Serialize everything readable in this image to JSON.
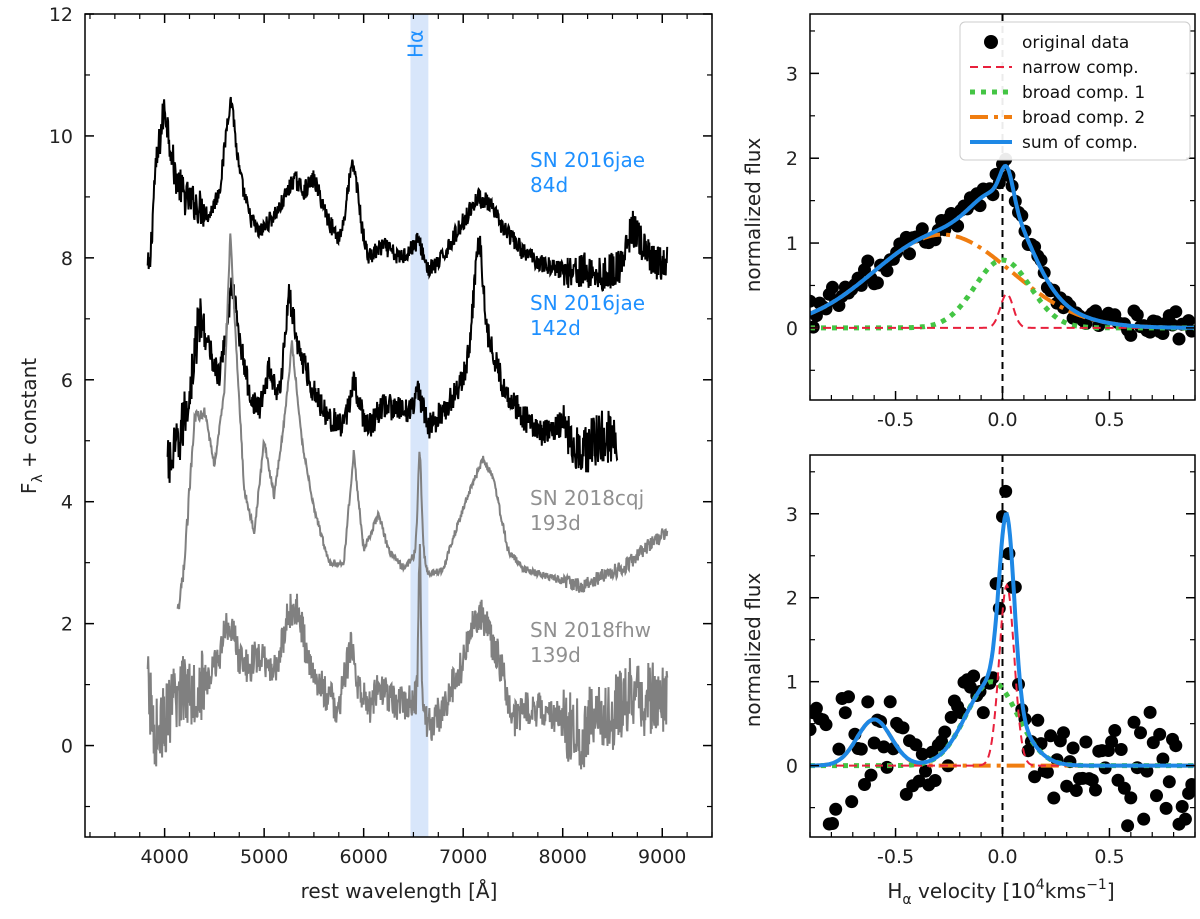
{
  "chart_data": [
    {
      "type": "line",
      "title": "",
      "xlabel": "rest wavelength [Å]",
      "ylabel": "F_λ + constant",
      "ylabel_main": "F",
      "ylabel_sub": "λ",
      "ylabel_rest": " + constant",
      "xlim": [
        3200,
        9500
      ],
      "ylim": [
        -1.5,
        12
      ],
      "xticks": [
        4000,
        5000,
        6000,
        7000,
        8000,
        9000
      ],
      "xtick_labels": [
        "4000",
        "5000",
        "6000",
        "7000",
        "8000",
        "9000"
      ],
      "yticks": [
        0,
        2,
        4,
        6,
        8,
        10,
        12
      ],
      "ytick_labels": [
        "0",
        "2",
        "4",
        "6",
        "8",
        "10",
        "12"
      ],
      "highlight": {
        "label": "Hα",
        "range": [
          6470,
          6650
        ],
        "color": "#d8e6fa"
      },
      "series": [
        {
          "name": "SN 2016jae 84d",
          "label_line1": "SN 2016jae",
          "label_line2": "84d",
          "color": "#000000",
          "label_color": "#1e90ff",
          "x_range": [
            3830,
            9050
          ],
          "offset": 7.0,
          "lines": [
            [
              3850,
              0.8
            ],
            [
              3900,
              2.3
            ],
            [
              4000,
              3.5
            ],
            [
              4100,
              2.4
            ],
            [
              4200,
              2.0
            ],
            [
              4300,
              1.9
            ],
            [
              4450,
              1.7
            ],
            [
              4550,
              2.1
            ],
            [
              4680,
              3.1
            ],
            [
              4750,
              2.4
            ],
            [
              4850,
              1.7
            ],
            [
              4950,
              1.4
            ],
            [
              5050,
              1.6
            ],
            [
              5150,
              1.8
            ],
            [
              5300,
              2.3
            ],
            [
              5400,
              2.1
            ],
            [
              5500,
              2.3
            ],
            [
              5650,
              1.6
            ],
            [
              5750,
              1.3
            ],
            [
              5900,
              1.5
            ],
            [
              5950,
              1.4
            ],
            [
              6050,
              1.0
            ],
            [
              6200,
              1.2
            ],
            [
              6350,
              1.0
            ],
            [
              6450,
              1.1
            ],
            [
              6550,
              1.3
            ],
            [
              6650,
              0.8
            ],
            [
              6750,
              0.9
            ],
            [
              7000,
              1.6
            ],
            [
              7150,
              2.0
            ],
            [
              7250,
              1.9
            ],
            [
              7400,
              1.5
            ],
            [
              7600,
              1.1
            ],
            [
              7800,
              0.9
            ],
            [
              8000,
              0.8
            ],
            [
              8200,
              0.8
            ],
            [
              8400,
              0.7
            ],
            [
              8600,
              0.9
            ],
            [
              8700,
              1.5
            ],
            [
              8800,
              1.2
            ],
            [
              8900,
              0.9
            ],
            [
              9050,
              0.9
            ]
          ],
          "peaks": [
            [
              5890,
              1.0,
              55
            ],
            [
              4650,
              0.6,
              40
            ]
          ],
          "noise": 0.15
        },
        {
          "name": "SN 2016jae 142d",
          "label_line1": "SN 2016jae",
          "label_line2": "142d",
          "color": "#000000",
          "label_color": "#1e90ff",
          "x_range": [
            4030,
            8550
          ],
          "offset": 4.2,
          "lines": [
            [
              4050,
              0.4
            ],
            [
              4150,
              0.8
            ],
            [
              4250,
              1.6
            ],
            [
              4350,
              2.8
            ],
            [
              4450,
              2.3
            ],
            [
              4550,
              1.8
            ],
            [
              4680,
              3.4
            ],
            [
              4750,
              2.5
            ],
            [
              4850,
              1.6
            ],
            [
              4950,
              1.3
            ],
            [
              5050,
              2.0
            ],
            [
              5150,
              1.5
            ],
            [
              5250,
              3.2
            ],
            [
              5350,
              2.3
            ],
            [
              5500,
              1.6
            ],
            [
              5650,
              1.2
            ],
            [
              5800,
              1.0
            ],
            [
              5900,
              1.8
            ],
            [
              5950,
              1.4
            ],
            [
              6050,
              1.0
            ],
            [
              6200,
              1.4
            ],
            [
              6350,
              1.3
            ],
            [
              6450,
              1.3
            ],
            [
              6550,
              1.6
            ],
            [
              6650,
              1.0
            ],
            [
              6800,
              1.3
            ],
            [
              7000,
              1.8
            ],
            [
              7170,
              3.2
            ],
            [
              7250,
              2.5
            ],
            [
              7400,
              1.7
            ],
            [
              7600,
              1.2
            ],
            [
              7800,
              0.9
            ],
            [
              8000,
              1.1
            ],
            [
              8200,
              0.6
            ],
            [
              8300,
              0.8
            ],
            [
              8400,
              0.9
            ],
            [
              8550,
              0.8
            ]
          ],
          "peaks": [
            [
              7150,
              1.0,
              40
            ]
          ],
          "noise": 0.22
        },
        {
          "name": "SN 2018cqj 193d",
          "label_line1": "SN 2018cqj",
          "label_line2": "193d",
          "color": "#808080",
          "label_color": "#909090",
          "x_range": [
            4130,
            9050
          ],
          "offset": 2.0,
          "lines": [
            [
              4140,
              0.2
            ],
            [
              4200,
              1.0
            ],
            [
              4300,
              3.4
            ],
            [
              4400,
              3.5
            ],
            [
              4500,
              2.6
            ],
            [
              4600,
              3.8
            ],
            [
              4660,
              6.4
            ],
            [
              4720,
              4.5
            ],
            [
              4800,
              2.2
            ],
            [
              4900,
              1.5
            ],
            [
              5000,
              3.0
            ],
            [
              5100,
              2.1
            ],
            [
              5200,
              3.3
            ],
            [
              5280,
              4.6
            ],
            [
              5380,
              3.0
            ],
            [
              5500,
              1.9
            ],
            [
              5650,
              1.0
            ],
            [
              5800,
              1.0
            ],
            [
              5900,
              2.8
            ],
            [
              6000,
              1.2
            ],
            [
              6150,
              1.8
            ],
            [
              6250,
              1.2
            ],
            [
              6400,
              0.9
            ],
            [
              6500,
              1.1
            ],
            [
              6560,
              1.4
            ],
            [
              6650,
              0.8
            ],
            [
              6800,
              0.9
            ],
            [
              7000,
              1.9
            ],
            [
              7200,
              2.7
            ],
            [
              7300,
              2.4
            ],
            [
              7450,
              1.2
            ],
            [
              7600,
              0.9
            ],
            [
              7800,
              0.8
            ],
            [
              8000,
              0.7
            ],
            [
              8200,
              0.6
            ],
            [
              8400,
              0.8
            ],
            [
              8600,
              0.9
            ],
            [
              8800,
              1.2
            ],
            [
              9050,
              1.5
            ]
          ],
          "peaks": [
            [
              6563,
              1.4,
              18
            ]
          ],
          "noise": 0.06
        },
        {
          "name": "SN 2018fhw 139d",
          "label_line1": "SN 2018fhw",
          "label_line2": "139d",
          "color": "#808080",
          "label_color": "#909090",
          "x_range": [
            3830,
            9050
          ],
          "offset": 0.0,
          "lines": [
            [
              3830,
              1.0
            ],
            [
              3900,
              0.2
            ],
            [
              4000,
              0.4
            ],
            [
              4100,
              0.7
            ],
            [
              4200,
              1.0
            ],
            [
              4300,
              0.9
            ],
            [
              4450,
              1.1
            ],
            [
              4550,
              1.5
            ],
            [
              4650,
              2.1
            ],
            [
              4750,
              1.4
            ],
            [
              4850,
              1.3
            ],
            [
              4950,
              1.5
            ],
            [
              5050,
              1.2
            ],
            [
              5150,
              1.4
            ],
            [
              5250,
              2.2
            ],
            [
              5350,
              2.2
            ],
            [
              5450,
              1.3
            ],
            [
              5600,
              0.9
            ],
            [
              5750,
              0.6
            ],
            [
              5880,
              1.7
            ],
            [
              5950,
              0.9
            ],
            [
              6050,
              0.6
            ],
            [
              6150,
              1.0
            ],
            [
              6250,
              0.8
            ],
            [
              6350,
              0.7
            ],
            [
              6450,
              0.7
            ],
            [
              6550,
              0.8
            ],
            [
              6650,
              0.3
            ],
            [
              6800,
              0.6
            ],
            [
              7000,
              1.4
            ],
            [
              7150,
              2.2
            ],
            [
              7250,
              1.9
            ],
            [
              7400,
              1.2
            ],
            [
              7500,
              0.4
            ],
            [
              7600,
              0.6
            ],
            [
              7800,
              0.6
            ],
            [
              8000,
              0.4
            ],
            [
              8200,
              0.1
            ],
            [
              8300,
              0.5
            ],
            [
              8500,
              0.5
            ],
            [
              8600,
              0.7
            ],
            [
              8700,
              0.9
            ],
            [
              8800,
              0.7
            ],
            [
              8900,
              0.8
            ],
            [
              9050,
              0.8
            ]
          ],
          "peaks": [
            [
              6563,
              2.5,
              12
            ]
          ],
          "noise": 0.3
        }
      ]
    },
    {
      "type": "line",
      "title": "",
      "xlabel": "",
      "ylabel": "normalized flux",
      "xlim": [
        -0.9,
        0.9
      ],
      "ylim": [
        -0.85,
        3.7
      ],
      "xticks": [
        -0.5,
        0.0,
        0.5
      ],
      "xtick_labels": [
        "-0.5",
        "0.0",
        "0.5"
      ],
      "yticks": [
        0,
        1,
        2,
        3
      ],
      "ytick_labels": [
        "0",
        "1",
        "2",
        "3"
      ],
      "legend": {
        "placement": "top-right",
        "entries": [
          {
            "label": "original data",
            "style": "dots",
            "color": "#000000"
          },
          {
            "label": "narrow comp.",
            "style": "dashed",
            "color": "#e8203c"
          },
          {
            "label": "broad comp. 1",
            "style": "dotted",
            "color": "#44c544"
          },
          {
            "label": "broad comp. 2",
            "style": "dashdot",
            "color": "#f07d10"
          },
          {
            "label": "sum of comp.",
            "style": "solid",
            "color": "#1e88e5"
          }
        ]
      },
      "components": {
        "narrow": {
          "center": 0.02,
          "sigma": 0.03,
          "amp": 0.4
        },
        "broad1": {
          "center": 0.0,
          "sigma": 0.13,
          "amp": 0.8
        },
        "broad2": {
          "center": -0.28,
          "sigma": 0.32,
          "amp": 1.1
        }
      },
      "data_noise": 0.12
    },
    {
      "type": "line",
      "title": "",
      "xlabel": "H_α velocity [10^4 km s^-1]",
      "xlabel_main": "H",
      "xlabel_sub": "α",
      "xlabel_rest": " velocity [10",
      "xlabel_sup": "4",
      "xlabel_unit": "kms",
      "xlabel_sup2": "−1",
      "xlabel_end": "]",
      "ylabel": "normalized flux",
      "xlim": [
        -0.9,
        0.9
      ],
      "ylim": [
        -0.85,
        3.7
      ],
      "xticks": [
        -0.5,
        0.0,
        0.5
      ],
      "xtick_labels": [
        "-0.5",
        "0.0",
        "0.5"
      ],
      "yticks": [
        0,
        1,
        2,
        3
      ],
      "ytick_labels": [
        "0",
        "1",
        "2",
        "3"
      ],
      "components": {
        "narrow": {
          "center": 0.02,
          "sigma": 0.035,
          "amp": 2.15
        },
        "broad1": {
          "center": -0.05,
          "sigma": 0.12,
          "amp": 1.0
        },
        "broad2": {
          "center": -0.6,
          "sigma": 0.08,
          "amp": 0.55
        }
      },
      "data_noise": 0.45
    }
  ]
}
